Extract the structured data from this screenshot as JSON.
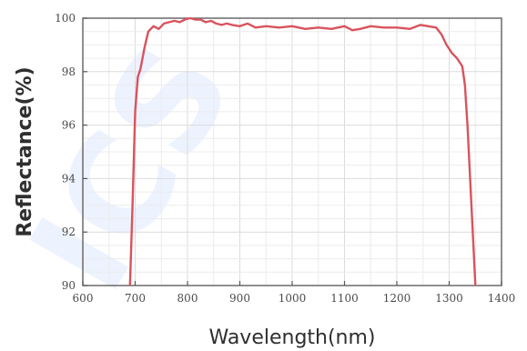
{
  "watermark": "ICS",
  "chart_data": {
    "type": "line",
    "title": "",
    "xlabel": "Wavelength(nm)",
    "ylabel": "Reflectance(%)",
    "xlim": [
      600,
      1400
    ],
    "ylim": [
      90,
      100
    ],
    "x_ticks": [
      600,
      700,
      800,
      900,
      1000,
      1100,
      1200,
      1300,
      1400
    ],
    "y_ticks": [
      90,
      92,
      94,
      96,
      98,
      100
    ],
    "grid": true,
    "line_color": "#d9535d",
    "series": [
      {
        "x": [
          690,
          695,
          700,
          705,
          710,
          718,
          725,
          735,
          745,
          755,
          765,
          775,
          785,
          795,
          805,
          815,
          825,
          835,
          845,
          855,
          865,
          875,
          885,
          900,
          915,
          930,
          950,
          975,
          1000,
          1025,
          1050,
          1075,
          1100,
          1115,
          1130,
          1150,
          1175,
          1200,
          1225,
          1245,
          1260,
          1275,
          1285,
          1295,
          1305,
          1315,
          1325,
          1330,
          1335,
          1340,
          1345,
          1350
        ],
        "y": [
          90,
          93,
          96.5,
          97.8,
          98.1,
          98.9,
          99.5,
          99.7,
          99.6,
          99.8,
          99.85,
          99.9,
          99.85,
          99.95,
          100,
          99.95,
          99.95,
          99.85,
          99.9,
          99.8,
          99.75,
          99.8,
          99.75,
          99.7,
          99.8,
          99.65,
          99.7,
          99.65,
          99.7,
          99.6,
          99.65,
          99.6,
          99.7,
          99.55,
          99.6,
          99.7,
          99.65,
          99.65,
          99.6,
          99.75,
          99.7,
          99.65,
          99.4,
          99.0,
          98.7,
          98.5,
          98.2,
          97.5,
          96.0,
          94.0,
          92.0,
          90
        ]
      }
    ]
  }
}
